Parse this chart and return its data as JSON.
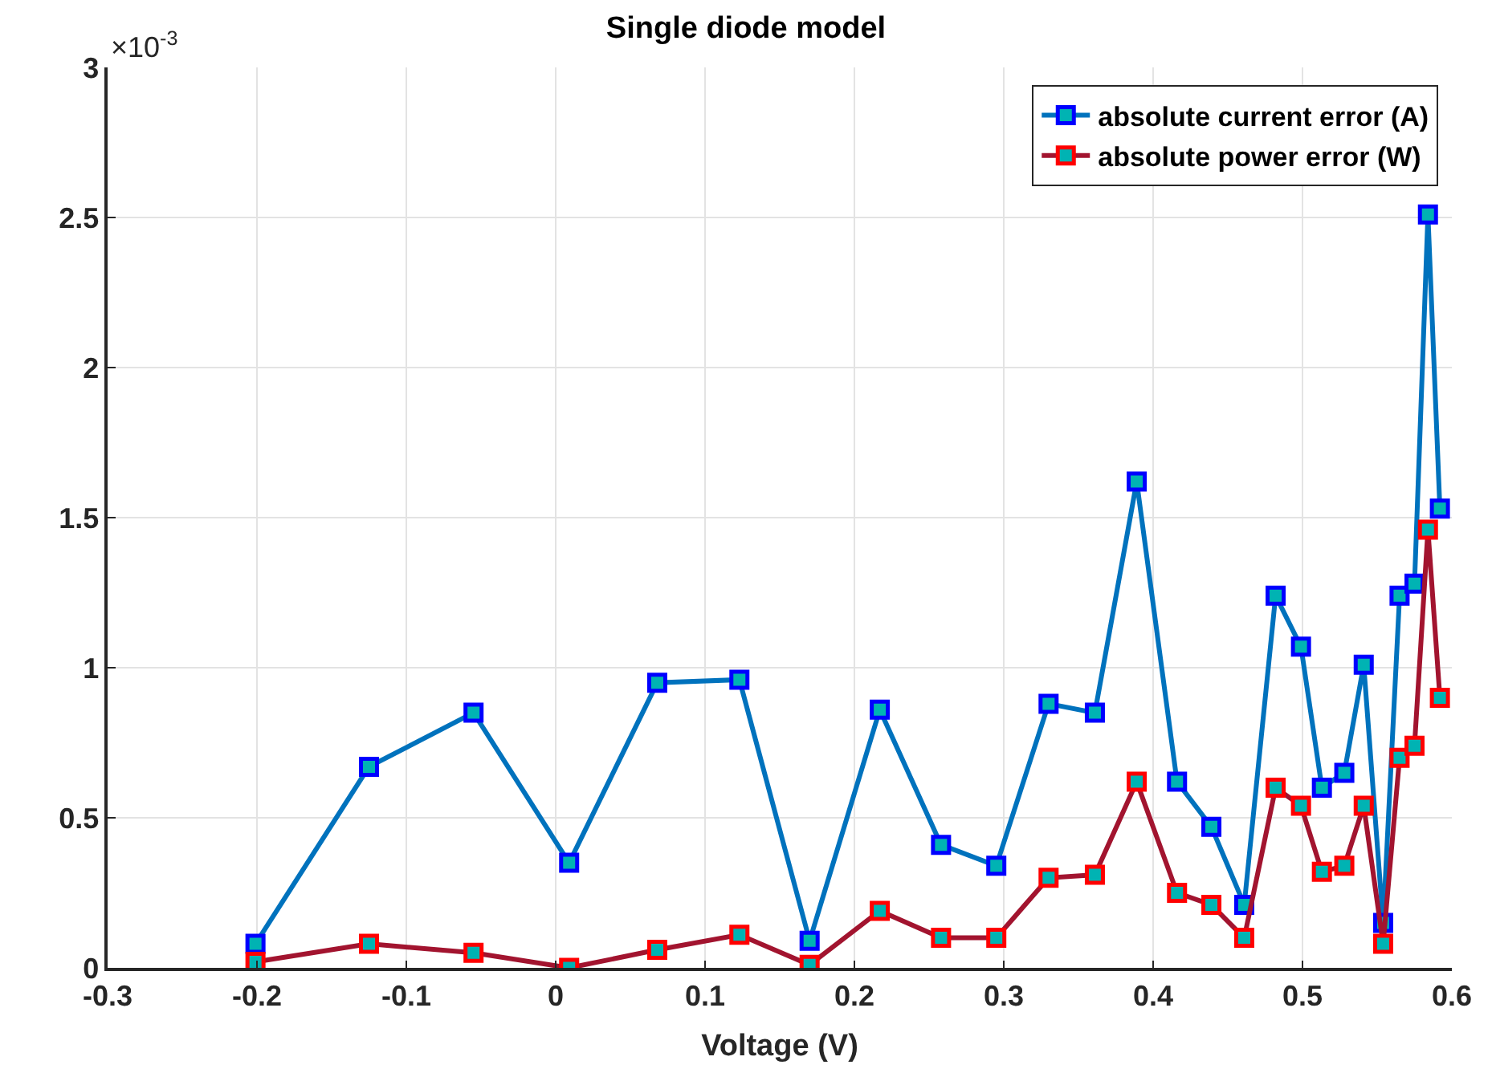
{
  "chart_data": {
    "type": "line",
    "title": "Single diode model",
    "xlabel": "Voltage (V)",
    "annotations": [
      "×10$^{-3}$"
    ],
    "x": [
      -0.201,
      -0.125,
      -0.055,
      0.009,
      0.068,
      0.123,
      0.17,
      0.217,
      0.258,
      0.295,
      0.33,
      0.361,
      0.389,
      0.416,
      0.439,
      0.461,
      0.482,
      0.499,
      0.513,
      0.528,
      0.541,
      0.554,
      0.565,
      0.575,
      0.584,
      0.592
    ],
    "series": [
      {
        "name": "absolute current error (A)",
        "color": "#0072bd",
        "values": [
          0.08,
          0.67,
          0.85,
          0.35,
          0.95,
          0.96,
          0.09,
          0.86,
          0.41,
          0.34,
          0.88,
          0.85,
          1.62,
          0.62,
          0.47,
          0.21,
          1.24,
          1.07,
          0.6,
          0.65,
          1.01,
          0.15,
          1.24,
          1.28,
          2.51,
          1.53
        ]
      },
      {
        "name": "absolute power error (W)",
        "color": "#a2142f",
        "values": [
          0.02,
          0.08,
          0.05,
          0.0,
          0.06,
          0.11,
          0.01,
          0.19,
          0.1,
          0.1,
          0.3,
          0.31,
          0.62,
          0.25,
          0.21,
          0.1,
          0.6,
          0.54,
          0.32,
          0.34,
          0.54,
          0.08,
          0.7,
          0.74,
          1.46,
          0.9
        ]
      }
    ],
    "xlim": [
      -0.3,
      0.6
    ],
    "xticks": [
      -0.3,
      -0.2,
      -0.1,
      0,
      0.1,
      0.2,
      0.3,
      0.4,
      0.5,
      0.6
    ],
    "ylim": [
      0,
      3
    ],
    "yticks": [
      0,
      0.5,
      1,
      1.5,
      2,
      2.5,
      3
    ],
    "grid": true,
    "legend": "top right",
    "marker": "square",
    "line_style": "solid"
  }
}
